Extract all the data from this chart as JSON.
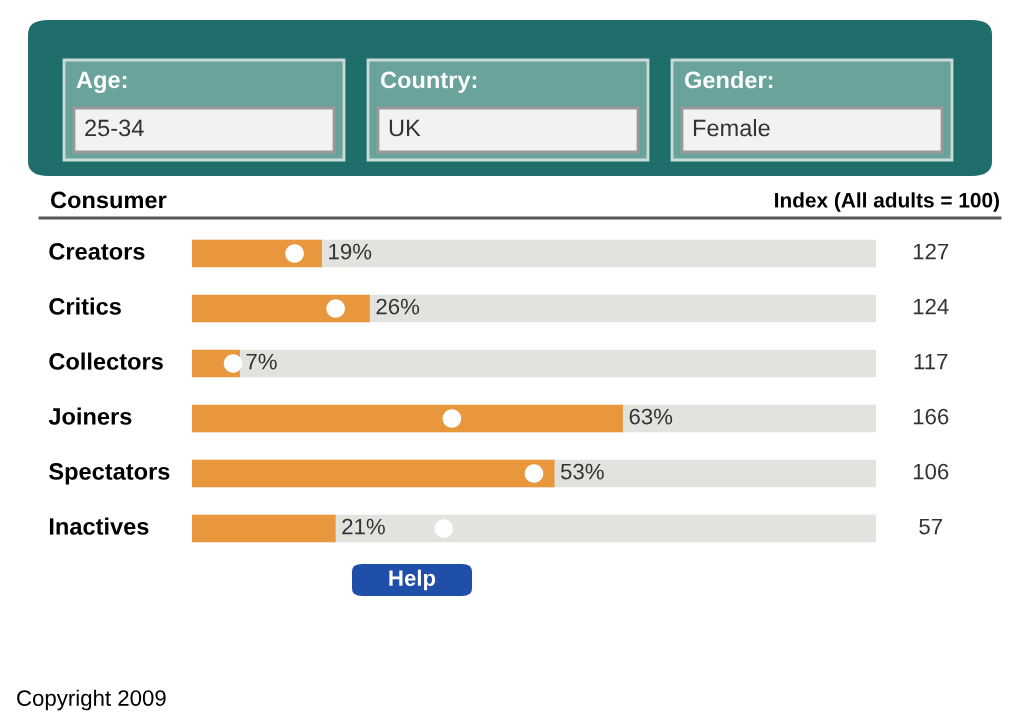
{
  "chart_data": {
    "type": "bar",
    "orientation": "horizontal",
    "ylabel": "Consumer",
    "y2label": "Index (All adults = 100)",
    "categories": [
      "Creators",
      "Critics",
      "Collectors",
      "Joiners",
      "Spectators",
      "Inactives"
    ],
    "series": [
      {
        "color": "#e8973c",
        "values": [
          19,
          26,
          7,
          63,
          53,
          21
        ],
        "value_labels": [
          "19%",
          "26%",
          "7%",
          "63%",
          "53%",
          "21%"
        ]
      },
      {
        "type": "scatter",
        "color": "#ffffff",
        "values": [
          15.0,
          21.0,
          6.0,
          38.0,
          50.0,
          36.8
        ]
      }
    ],
    "xlim": [
      0,
      100
    ],
    "tick_labels": false,
    "grid": false,
    "legend": false,
    "annotations": [
      "127",
      "124",
      "117",
      "166",
      "106",
      "57",
      "Age:",
      "25-34",
      "Country:",
      "UK",
      "Gender:",
      "Female",
      "Help",
      "Copyright 2009"
    ]
  }
}
